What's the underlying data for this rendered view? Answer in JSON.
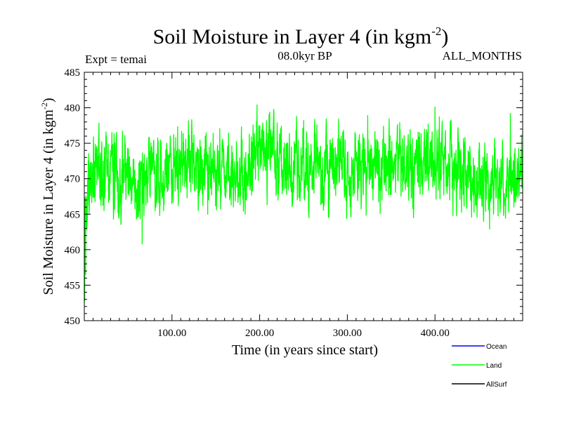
{
  "chart_data": {
    "type": "line",
    "title": "Soil Moisture in Layer 4 (in kgm",
    "title_superscript": "-2",
    "title_close": ")",
    "subtitle_left": "Expt = temai",
    "subtitle_center": "08.0kyr BP",
    "subtitle_right": "ALL_MONTHS",
    "xlabel": "Time (in years since start)",
    "ylabel": "Soil Moisture in Layer 4 (in kgm",
    "ylabel_superscript": "-2",
    "ylabel_close": ")",
    "xlim": [
      0,
      500
    ],
    "ylim": [
      450,
      485
    ],
    "x_ticks": [
      100,
      200,
      300,
      400
    ],
    "x_tick_labels": [
      "100.00",
      "200.00",
      "300.00",
      "400.00"
    ],
    "y_ticks": [
      450,
      455,
      460,
      465,
      470,
      475,
      480,
      485
    ],
    "y_tick_labels": [
      "450",
      "455",
      "460",
      "465",
      "470",
      "475",
      "480",
      "485"
    ],
    "legend": [
      {
        "name": "Ocean",
        "color": "#0000ff"
      },
      {
        "name": "Land",
        "color": "#00ff00"
      },
      {
        "name": "AllSurf",
        "color": "#000000"
      }
    ],
    "series": [
      {
        "name": "Land",
        "color": "#00ff00",
        "x_start": 0,
        "x_step": 0.25,
        "count": 2000,
        "mean_profile": [
          {
            "x": 0,
            "y": 462
          },
          {
            "x": 3,
            "y": 466
          },
          {
            "x": 8,
            "y": 471
          },
          {
            "x": 30,
            "y": 470
          },
          {
            "x": 80,
            "y": 469.5
          },
          {
            "x": 100,
            "y": 471.5
          },
          {
            "x": 150,
            "y": 472
          },
          {
            "x": 185,
            "y": 471
          },
          {
            "x": 200,
            "y": 474
          },
          {
            "x": 220,
            "y": 472
          },
          {
            "x": 300,
            "y": 471
          },
          {
            "x": 340,
            "y": 472.5
          },
          {
            "x": 400,
            "y": 471.5
          },
          {
            "x": 440,
            "y": 470.5
          },
          {
            "x": 460,
            "y": 468
          },
          {
            "x": 480,
            "y": 471
          },
          {
            "x": 500,
            "y": 472
          }
        ],
        "amplitude": 3.8,
        "y_min": 452.8,
        "y_max": 480.4,
        "notable_points": [
          {
            "x": 0.5,
            "y": 452.8
          },
          {
            "x": 1.5,
            "y": 456.5
          },
          {
            "x": 66,
            "y": 460.8
          },
          {
            "x": 197,
            "y": 480.4
          },
          {
            "x": 400,
            "y": 480.1
          },
          {
            "x": 486,
            "y": 479.2
          }
        ]
      },
      {
        "name": "Ocean",
        "color": "#0000ff",
        "values": []
      },
      {
        "name": "AllSurf",
        "color": "#000000",
        "values": []
      }
    ]
  }
}
